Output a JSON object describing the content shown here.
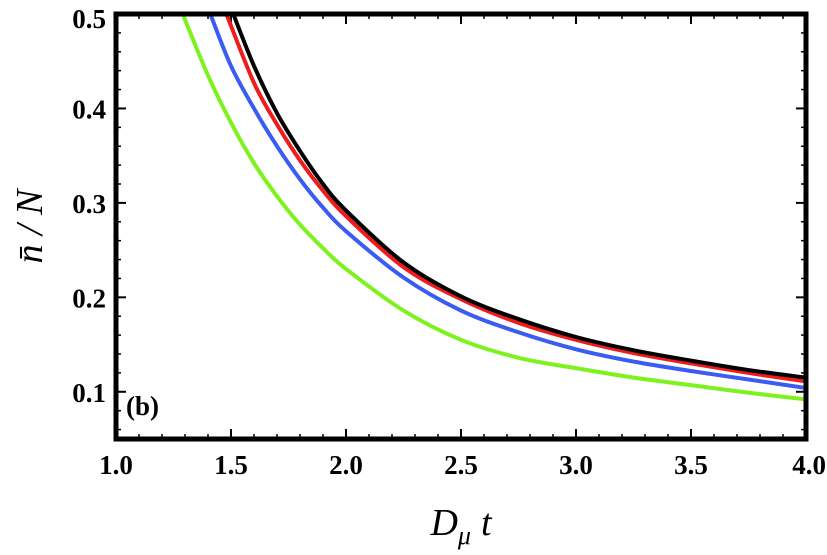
{
  "chart_data": {
    "type": "line",
    "panel_label": "(b)",
    "xlabel": "D",
    "xlabel_subscript": "μ",
    "xlabel_suffix": "t",
    "ylabel": "n̄ / N",
    "xlim": [
      1.0,
      4.0
    ],
    "ylim": [
      0.05,
      0.5
    ],
    "x_ticks": [
      "1.0",
      "1.5",
      "2.0",
      "2.5",
      "3.0",
      "3.5",
      "4.0"
    ],
    "y_ticks": [
      "0.1",
      "0.2",
      "0.3",
      "0.4",
      "0.5"
    ],
    "grid": false,
    "legend": false,
    "series": [
      {
        "color": "#7df21e",
        "x": [
          1.29,
          1.4,
          1.5,
          1.6,
          1.7,
          1.8,
          1.9,
          2.0,
          2.25,
          2.5,
          2.75,
          3.0,
          3.25,
          3.5,
          3.75,
          4.0
        ],
        "y": [
          0.5,
          0.435,
          0.385,
          0.342,
          0.307,
          0.277,
          0.252,
          0.23,
          0.186,
          0.155,
          0.136,
          0.125,
          0.115,
          0.107,
          0.099,
          0.092
        ]
      },
      {
        "color": "#3a5cf0",
        "x": [
          1.41,
          1.5,
          1.6,
          1.7,
          1.8,
          1.9,
          2.0,
          2.25,
          2.5,
          2.75,
          3.0,
          3.25,
          3.5,
          3.75,
          4.0
        ],
        "y": [
          0.5,
          0.445,
          0.4,
          0.36,
          0.325,
          0.295,
          0.27,
          0.221,
          0.186,
          0.163,
          0.145,
          0.132,
          0.122,
          0.113,
          0.104
        ]
      },
      {
        "color": "#ee1c1c",
        "x": [
          1.48,
          1.6,
          1.7,
          1.8,
          1.9,
          2.0,
          2.25,
          2.5,
          2.75,
          3.0,
          3.25,
          3.5,
          3.75,
          4.0
        ],
        "y": [
          0.5,
          0.427,
          0.383,
          0.345,
          0.313,
          0.286,
          0.232,
          0.198,
          0.173,
          0.155,
          0.141,
          0.13,
          0.12,
          0.111
        ]
      },
      {
        "color": "#000000",
        "x": [
          1.51,
          1.6,
          1.7,
          1.8,
          1.9,
          2.0,
          2.25,
          2.5,
          2.75,
          3.0,
          3.25,
          3.5,
          3.75,
          4.0
        ],
        "y": [
          0.5,
          0.445,
          0.395,
          0.355,
          0.32,
          0.292,
          0.237,
          0.201,
          0.177,
          0.158,
          0.144,
          0.133,
          0.123,
          0.115
        ]
      }
    ]
  }
}
